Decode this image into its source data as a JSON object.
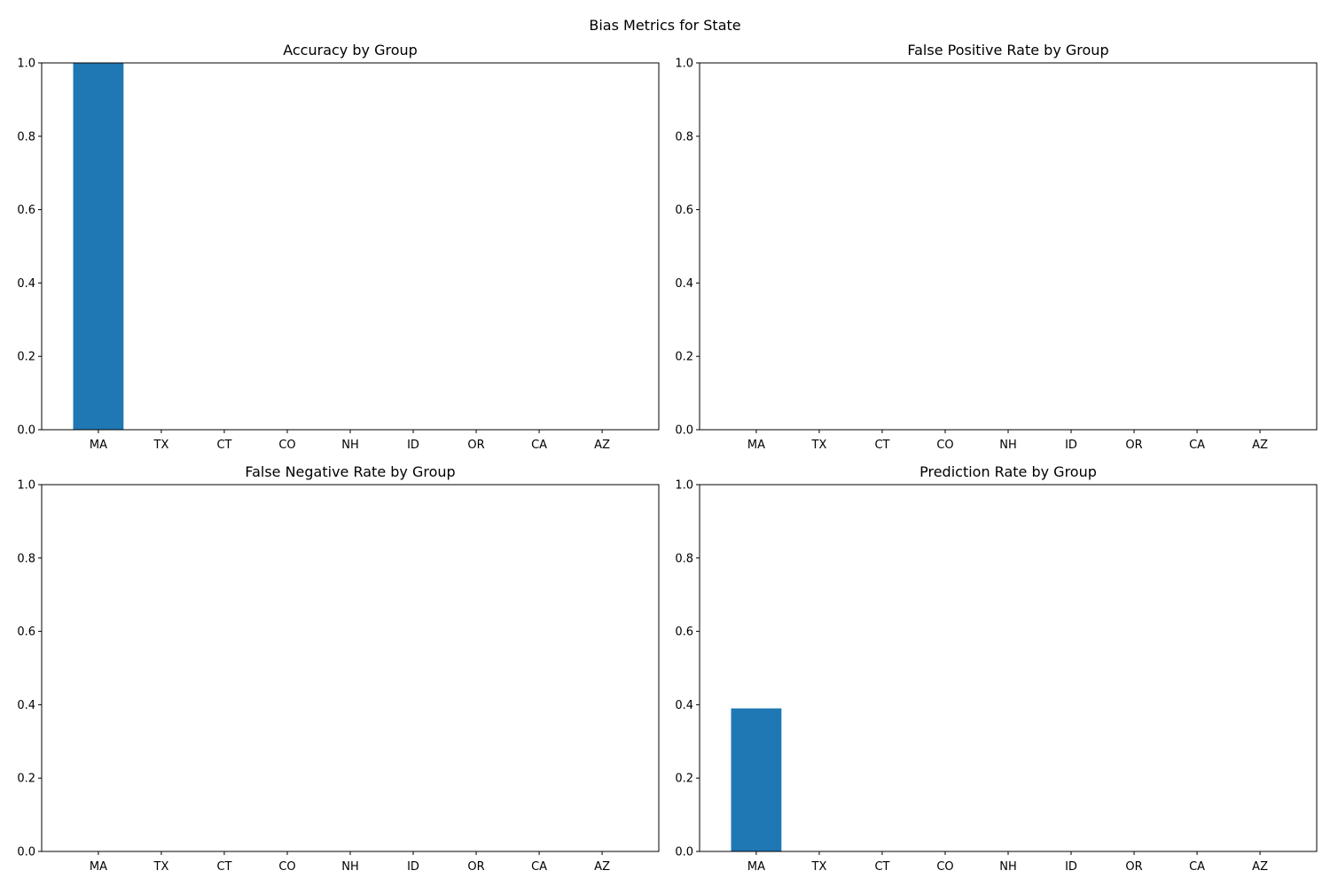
{
  "figure": {
    "title": "Bias Metrics for State"
  },
  "colors": {
    "bar": "#1f77b4",
    "axis": "#000000",
    "background": "#ffffff"
  },
  "chart_data": [
    {
      "type": "bar",
      "title": "Accuracy by Group",
      "categories": [
        "MA",
        "TX",
        "CT",
        "CO",
        "NH",
        "ID",
        "OR",
        "CA",
        "AZ"
      ],
      "values": [
        1.0,
        0,
        0,
        0,
        0,
        0,
        0,
        0,
        0
      ],
      "ylim": [
        0,
        1
      ],
      "yticks": [
        "0.0",
        "0.2",
        "0.4",
        "0.6",
        "0.8",
        "1.0"
      ],
      "xlabel": "",
      "ylabel": "",
      "grid": false
    },
    {
      "type": "bar",
      "title": "False Positive Rate by Group",
      "categories": [
        "MA",
        "TX",
        "CT",
        "CO",
        "NH",
        "ID",
        "OR",
        "CA",
        "AZ"
      ],
      "values": [
        0,
        0,
        0,
        0,
        0,
        0,
        0,
        0,
        0
      ],
      "ylim": [
        0,
        1
      ],
      "yticks": [
        "0.0",
        "0.2",
        "0.4",
        "0.6",
        "0.8",
        "1.0"
      ],
      "xlabel": "",
      "ylabel": "",
      "grid": false
    },
    {
      "type": "bar",
      "title": "False Negative Rate by Group",
      "categories": [
        "MA",
        "TX",
        "CT",
        "CO",
        "NH",
        "ID",
        "OR",
        "CA",
        "AZ"
      ],
      "values": [
        0,
        0,
        0,
        0,
        0,
        0,
        0,
        0,
        0
      ],
      "ylim": [
        0,
        1
      ],
      "yticks": [
        "0.0",
        "0.2",
        "0.4",
        "0.6",
        "0.8",
        "1.0"
      ],
      "xlabel": "",
      "ylabel": "",
      "grid": false
    },
    {
      "type": "bar",
      "title": "Prediction Rate by Group",
      "categories": [
        "MA",
        "TX",
        "CT",
        "CO",
        "NH",
        "ID",
        "OR",
        "CA",
        "AZ"
      ],
      "values": [
        0.39,
        0,
        0,
        0,
        0,
        0,
        0,
        0,
        0
      ],
      "ylim": [
        0,
        1
      ],
      "yticks": [
        "0.0",
        "0.2",
        "0.4",
        "0.6",
        "0.8",
        "1.0"
      ],
      "xlabel": "",
      "ylabel": "",
      "grid": false
    }
  ]
}
